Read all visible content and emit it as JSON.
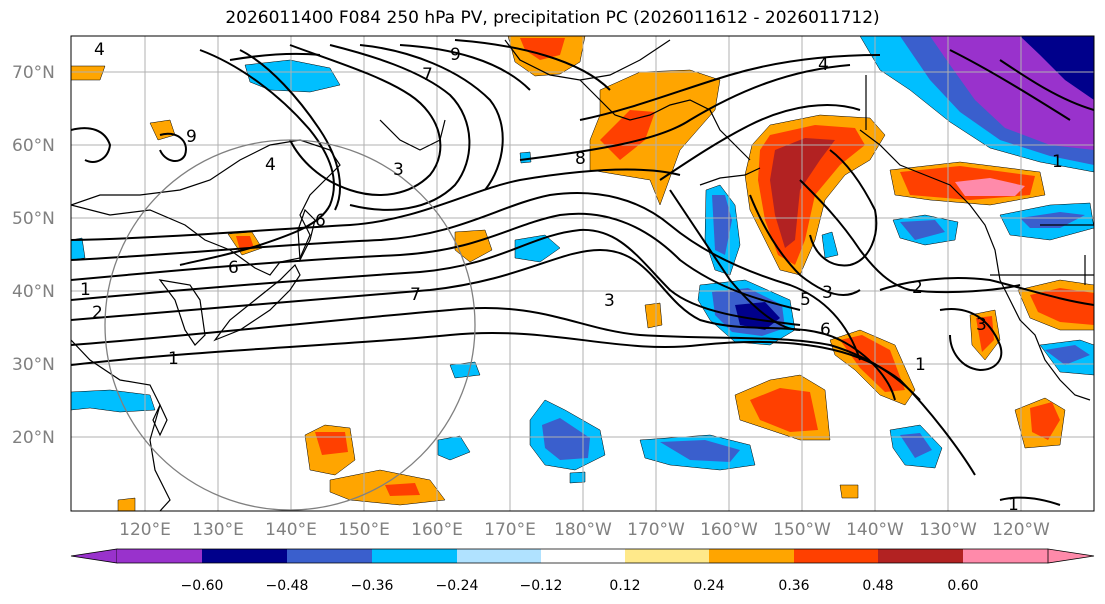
{
  "title": "2026011400 F084 250 hPa PV, precipitation PC (2026011612 - 2026011712)",
  "map": {
    "lat_labels": [
      "70°N",
      "60°N",
      "50°N",
      "40°N",
      "30°N",
      "20°N"
    ],
    "lon_labels": [
      "120°E",
      "130°E",
      "140°E",
      "150°E",
      "160°E",
      "170°E",
      "180°W",
      "170°W",
      "160°W",
      "150°W",
      "140°W",
      "130°W",
      "120°W"
    ],
    "contour_labels": [
      "9",
      "7",
      "4",
      "4",
      "3",
      "6",
      "6",
      "1",
      "2",
      "1",
      "7",
      "3",
      "8",
      "5",
      "3",
      "6",
      "2",
      "3",
      "1",
      "4",
      "1",
      "1",
      "9"
    ]
  },
  "colorbar": {
    "tick_labels": [
      "−0.60",
      "−0.48",
      "−0.36",
      "−0.24",
      "−0.12",
      "0.12",
      "0.24",
      "0.36",
      "0.48",
      "0.60"
    ],
    "colors": [
      "#9932cc",
      "#00008b",
      "#3a5fcd",
      "#00bfff",
      "#b0e2ff",
      "#ffffff",
      "#ffe98a",
      "#ffa500",
      "#ff4000",
      "#b22222",
      "#ff8aaa"
    ]
  }
}
